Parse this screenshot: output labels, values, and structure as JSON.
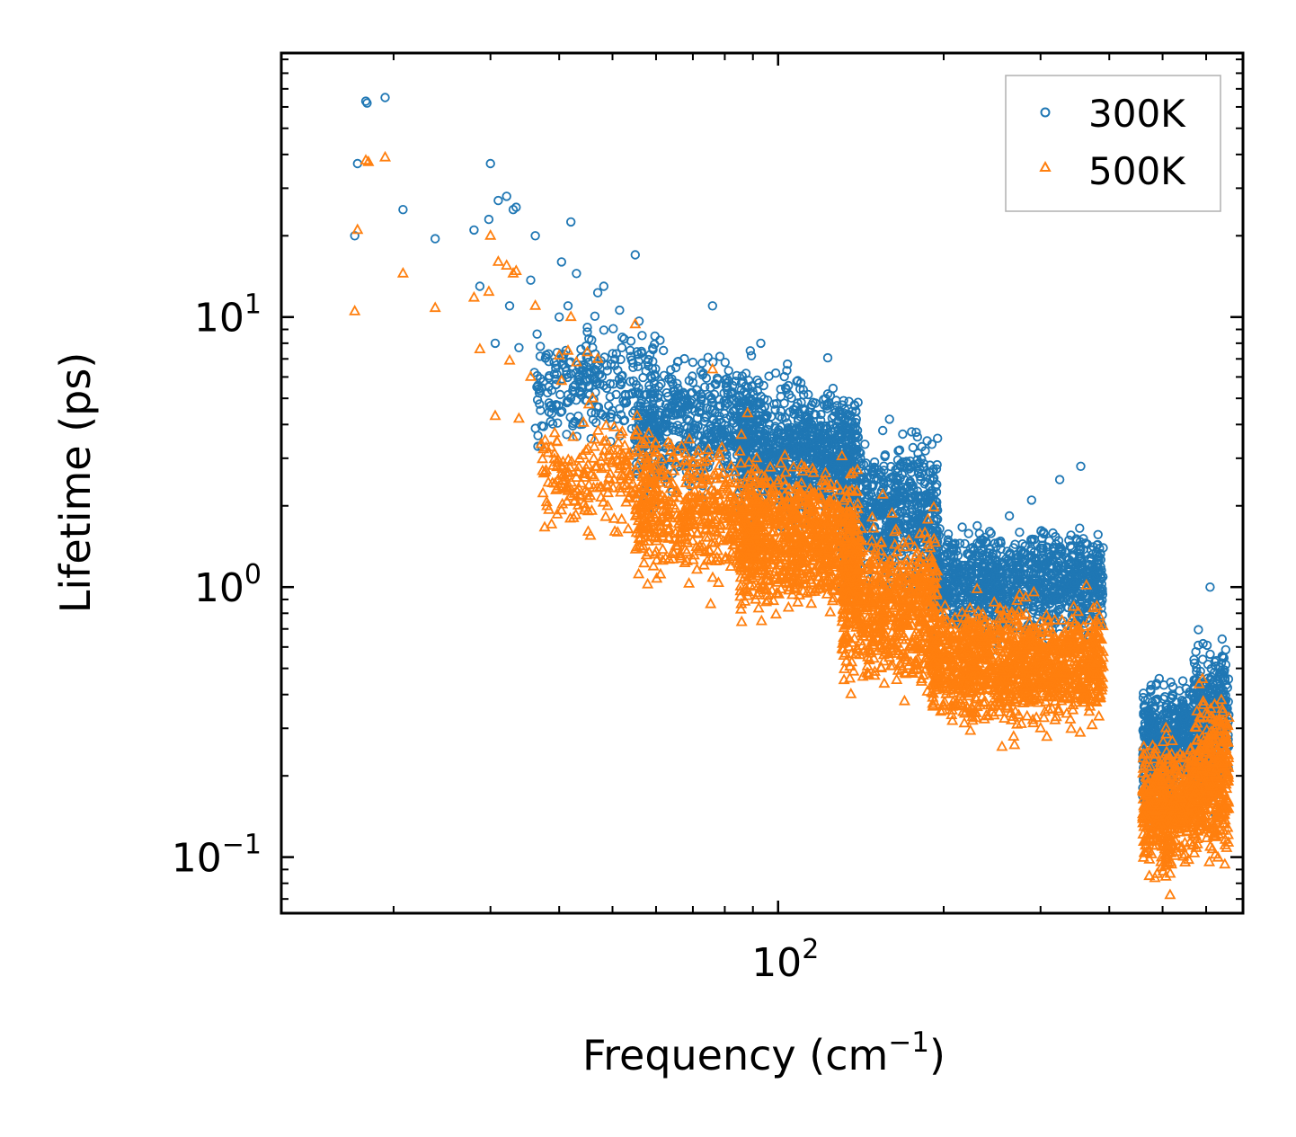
{
  "chart_data": {
    "type": "scatter",
    "xscale": "log",
    "yscale": "log",
    "xlabel": "Frequency (cm",
    "xlabel_sup": "−1",
    "xlabel_close": ")",
    "ylabel": "Lifetime (ps)",
    "xlim": [
      12.5,
      700
    ],
    "ylim": [
      0.062,
      95
    ],
    "x_major_ticks": [
      {
        "value": 100,
        "base": "10",
        "exp": "2"
      }
    ],
    "y_major_ticks": [
      {
        "value": 0.1,
        "base": "10",
        "exp": "−1"
      },
      {
        "value": 1,
        "base": "10",
        "exp": "0"
      },
      {
        "value": 10,
        "base": "10",
        "exp": "1"
      }
    ],
    "legend": {
      "position": "top-right",
      "entries": [
        "300K",
        "500K"
      ]
    },
    "series": [
      {
        "name": "300K",
        "marker": "circle",
        "color": "#1f77b4",
        "points": [
          [
            17.0,
            20.0
          ],
          [
            17.2,
            37.0
          ],
          [
            17.8,
            63.0
          ],
          [
            17.9,
            62.0
          ],
          [
            19.3,
            65.0
          ],
          [
            20.8,
            25.0
          ],
          [
            23.8,
            19.5
          ],
          [
            28.0,
            21.0
          ],
          [
            28.7,
            13.0
          ],
          [
            29.8,
            23.0
          ],
          [
            30.0,
            37.0
          ],
          [
            30.6,
            8.0
          ],
          [
            31.0,
            27.0
          ],
          [
            32.1,
            28.0
          ],
          [
            32.5,
            11.0
          ],
          [
            33.0,
            25.0
          ],
          [
            33.4,
            25.5
          ],
          [
            33.8,
            7.7
          ],
          [
            35.5,
            13.7
          ],
          [
            36.2,
            20.0
          ],
          [
            40.0,
            10.0
          ],
          [
            40.4,
            16.0
          ],
          [
            41.5,
            11.0
          ],
          [
            42.0,
            22.5
          ],
          [
            43.0,
            14.5
          ],
          [
            45.0,
            8.8
          ],
          [
            46.0,
            7.7
          ],
          [
            47.0,
            12.3
          ],
          [
            48.2,
            13.0
          ],
          [
            51.5,
            10.6
          ],
          [
            52.0,
            7.7
          ],
          [
            55.0,
            17.0
          ],
          [
            61.0,
            8.2
          ],
          [
            70.0,
            6.8
          ],
          [
            76.0,
            11.0
          ],
          [
            89.0,
            7.5
          ],
          [
            93.0,
            8.0
          ],
          [
            99.0,
            6.2
          ],
          [
            110.0,
            5.7
          ],
          [
            155.0,
            3.8
          ],
          [
            289.0,
            2.1
          ],
          [
            325.0,
            2.5
          ],
          [
            355.0,
            2.8
          ],
          [
            610.0,
            1.0
          ]
        ],
        "clusters": [
          {
            "x_range": [
              36,
              60
            ],
            "y_center": 5.5,
            "spread": 1.5,
            "count": 260
          },
          {
            "x_range": [
              55,
              90
            ],
            "y_center": 4.0,
            "spread": 1.6,
            "count": 520
          },
          {
            "x_range": [
              85,
              140
            ],
            "y_center": 3.2,
            "spread": 1.6,
            "count": 900
          },
          {
            "x_range": [
              130,
              195
            ],
            "y_center": 1.9,
            "spread": 1.7,
            "count": 650
          },
          {
            "x_range": [
              190,
              390
            ],
            "y_center": 1.05,
            "spread": 1.45,
            "count": 1100
          },
          {
            "x_range": [
              460,
              520
            ],
            "y_center": 0.25,
            "spread": 1.6,
            "count": 340
          },
          {
            "x_range": [
              520,
              570
            ],
            "y_center": 0.28,
            "spread": 1.45,
            "count": 180
          },
          {
            "x_range": [
              570,
              660
            ],
            "y_center": 0.32,
            "spread": 1.7,
            "count": 380
          }
        ]
      },
      {
        "name": "500K",
        "marker": "triangle",
        "color": "#ff7f0e",
        "points": [
          [
            17.0,
            10.5
          ],
          [
            17.2,
            21.0
          ],
          [
            17.8,
            38.0
          ],
          [
            18.0,
            37.5
          ],
          [
            19.3,
            39.0
          ],
          [
            20.8,
            14.5
          ],
          [
            23.8,
            10.8
          ],
          [
            28.0,
            11.8
          ],
          [
            28.7,
            7.6
          ],
          [
            29.8,
            12.4
          ],
          [
            30.0,
            20.0
          ],
          [
            30.6,
            4.3
          ],
          [
            31.0,
            16.0
          ],
          [
            32.1,
            15.5
          ],
          [
            32.5,
            6.9
          ],
          [
            33.0,
            14.5
          ],
          [
            33.4,
            14.8
          ],
          [
            33.8,
            4.2
          ],
          [
            35.5,
            6.0
          ],
          [
            36.2,
            11.0
          ],
          [
            40.0,
            7.2
          ],
          [
            40.4,
            5.8
          ],
          [
            41.5,
            7.5
          ],
          [
            42.0,
            10.0
          ],
          [
            43.0,
            6.8
          ],
          [
            45.0,
            7.4
          ],
          [
            46.0,
            5.0
          ],
          [
            47.0,
            7.0
          ],
          [
            55.0,
            9.4
          ],
          [
            76.0,
            6.4
          ],
          [
            88.0,
            4.4
          ],
          [
            155.0,
            2.2
          ],
          [
            269.0,
            0.26
          ],
          [
            300.0,
            0.3
          ]
        ],
        "clusters": [
          {
            "x_range": [
              37,
              60
            ],
            "y_center": 2.6,
            "spread": 1.5,
            "count": 220
          },
          {
            "x_range": [
              55,
              92
            ],
            "y_center": 1.9,
            "spread": 1.6,
            "count": 520
          },
          {
            "x_range": [
              85,
              140
            ],
            "y_center": 1.5,
            "spread": 1.6,
            "count": 900
          },
          {
            "x_range": [
              130,
              195
            ],
            "y_center": 0.85,
            "spread": 1.7,
            "count": 700
          },
          {
            "x_range": [
              190,
              390
            ],
            "y_center": 0.52,
            "spread": 1.5,
            "count": 1200
          },
          {
            "x_range": [
              460,
              520
            ],
            "y_center": 0.15,
            "spread": 1.55,
            "count": 340
          },
          {
            "x_range": [
              520,
              570
            ],
            "y_center": 0.16,
            "spread": 1.45,
            "count": 180
          },
          {
            "x_range": [
              570,
              660
            ],
            "y_center": 0.2,
            "spread": 1.75,
            "count": 380
          }
        ]
      }
    ]
  }
}
